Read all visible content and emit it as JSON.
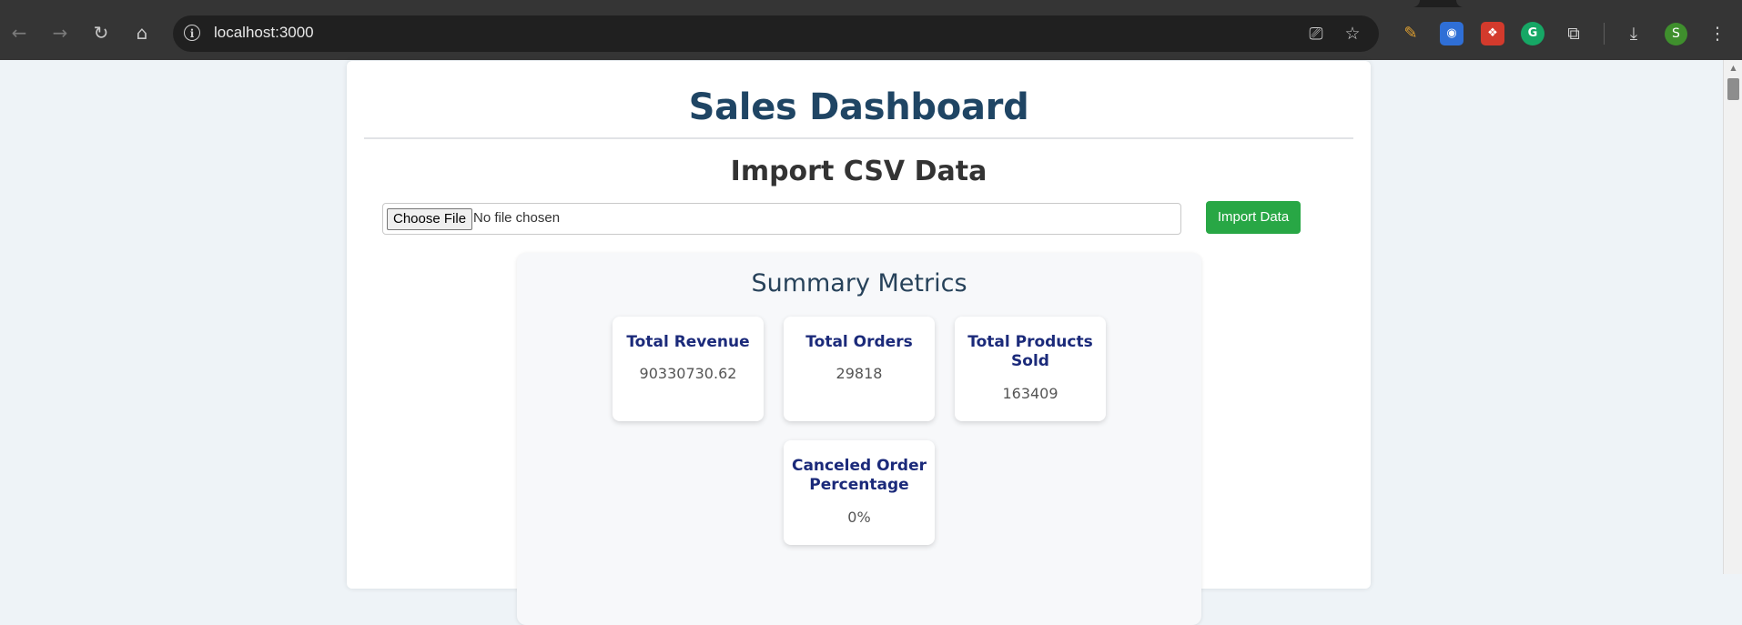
{
  "browser": {
    "url": "localhost:3000",
    "avatar_letter": "S",
    "icons": [
      "back-arrow-icon",
      "forward-arrow-icon",
      "reload-icon",
      "home-icon",
      "site-info-icon",
      "install-app-icon",
      "bookmark-star-icon",
      "extension-pen-icon",
      "extension-screen-icon",
      "extension-red-icon",
      "grammarly-icon",
      "extensions-puzzle-icon",
      "download-icon",
      "kebab-menu-icon"
    ]
  },
  "page": {
    "title": "Sales Dashboard",
    "import_title": "Import CSV Data",
    "file_button_label": "Choose File",
    "file_status": "No file chosen",
    "import_button_label": "Import Data"
  },
  "summary": {
    "title": "Summary Metrics",
    "metrics": [
      {
        "label": "Total Revenue",
        "value": "90330730.62"
      },
      {
        "label": "Total Orders",
        "value": "29818"
      },
      {
        "label": "Total Products Sold",
        "value": "163409"
      },
      {
        "label": "Canceled Order Percentage",
        "value": "0%"
      }
    ]
  },
  "colors": {
    "accent_green": "#28a745",
    "title_navy": "#1f4564",
    "card_label": "#1b2a7a"
  }
}
